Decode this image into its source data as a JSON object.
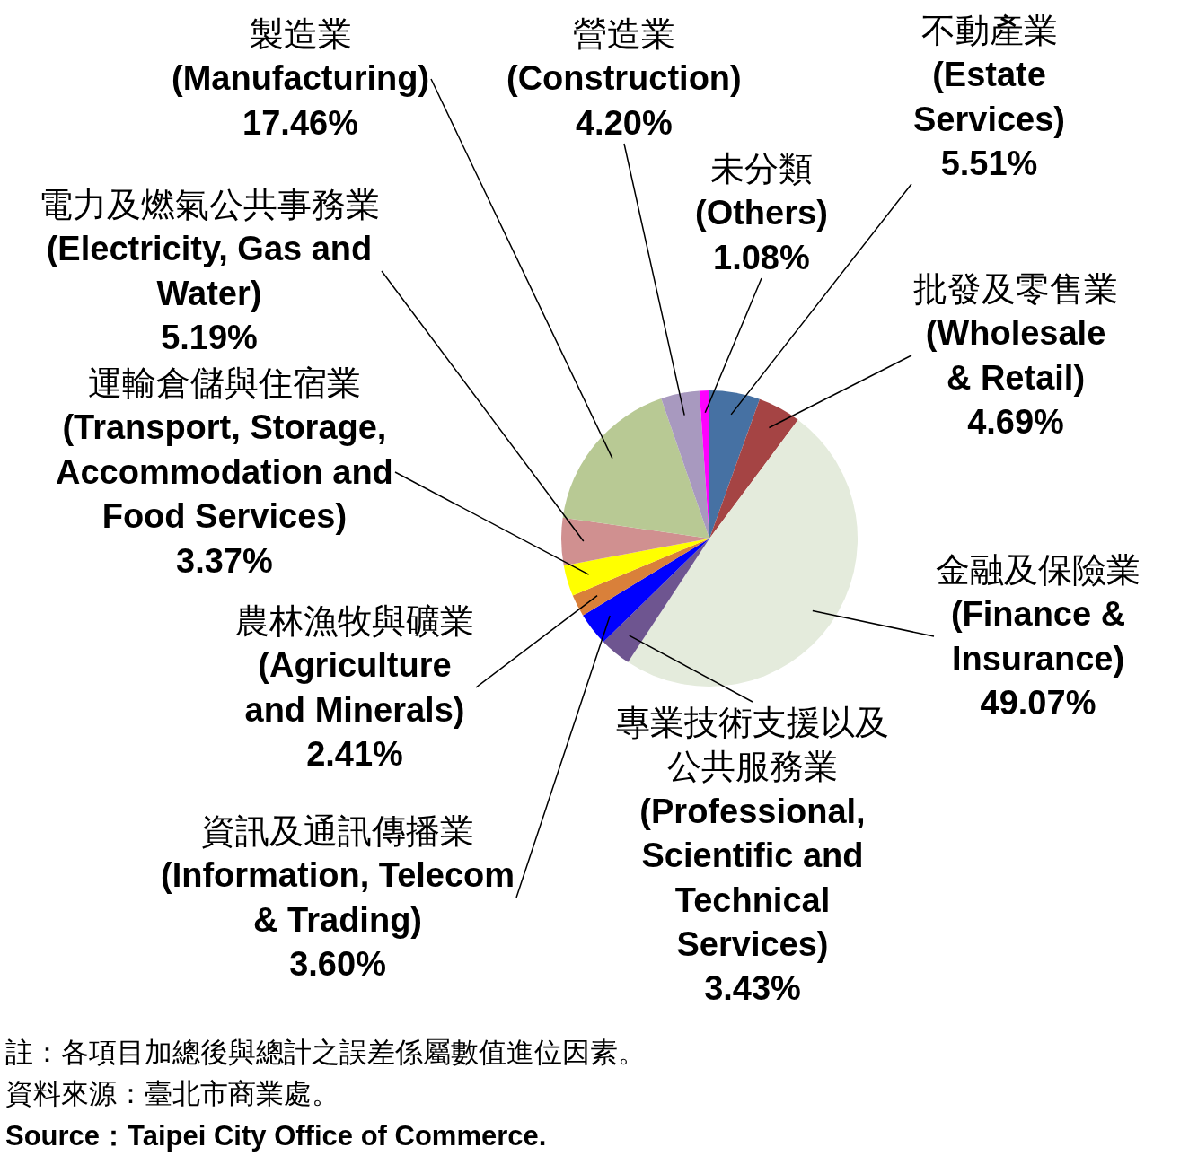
{
  "chart_data": {
    "type": "pie",
    "categories": [
      "不動產業 (Estate Services)",
      "批發及零售業 (Wholesale & Retail)",
      "金融及保險業 (Finance & Insurance)",
      "專業技術支援以及公共服務業 (Professional, Scientific and Technical Services)",
      "資訊及通訊傳播業 (Information, Telecom & Trading)",
      "農林漁牧與礦業 (Agriculture and Minerals)",
      "運輸倉儲與住宿業 (Transport, Storage, Accommodation and Food Services)",
      "電力及燃氣公共事務業 (Electricity, Gas and Water)",
      "製造業 (Manufacturing)",
      "營造業 (Construction)",
      "未分類 (Others)"
    ],
    "values": [
      5.51,
      4.69,
      49.07,
      3.43,
      3.6,
      2.41,
      3.37,
      5.19,
      17.46,
      4.2,
      1.08
    ],
    "value_labels": [
      "5.51%",
      "4.69%",
      "49.07%",
      "3.43%",
      "3.60%",
      "2.41%",
      "3.37%",
      "5.19%",
      "17.46%",
      "4.20%",
      "1.08%"
    ],
    "colors": [
      "#4671a3",
      "#a54444",
      "#e4ebdc",
      "#6e5590",
      "#0000ff",
      "#d9803a",
      "#ffff00",
      "#d09090",
      "#b8c994",
      "#a899bf",
      "#ff00ff"
    ],
    "annotations": [
      "註：各項目加總後與總計之誤差係屬數值進位因素。",
      "資料來源：臺北市商業處。",
      "Source：Taipei City Office of Commerce."
    ]
  }
}
